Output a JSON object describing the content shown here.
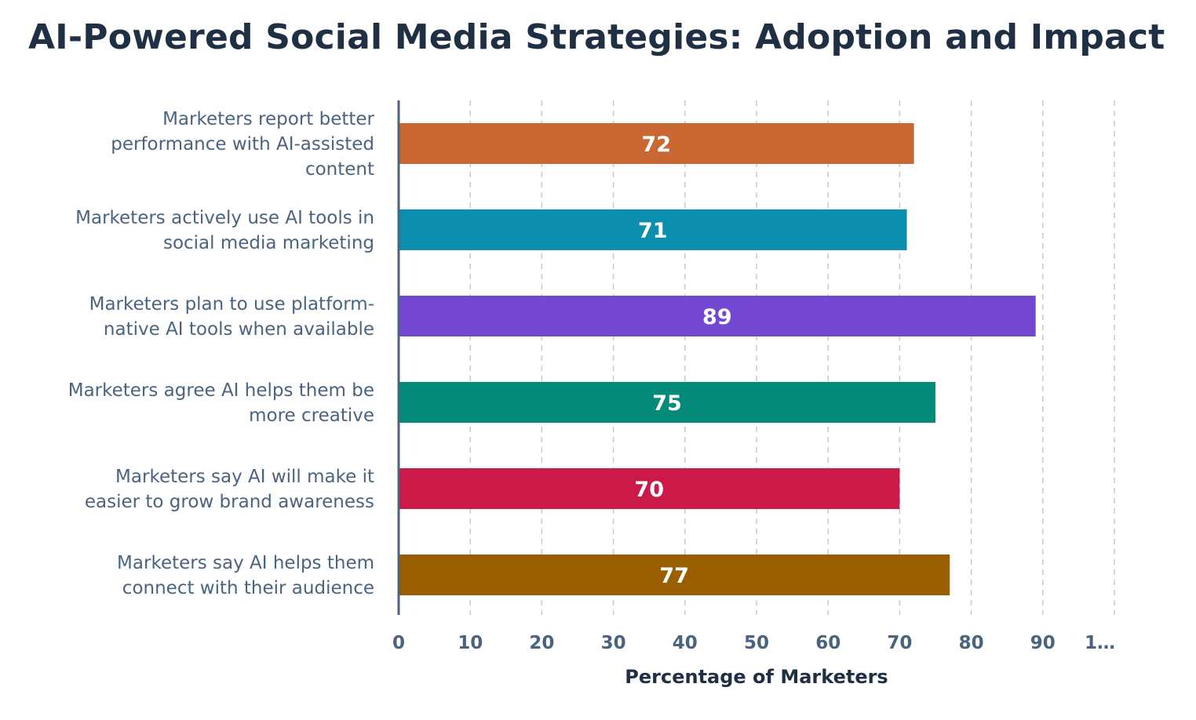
{
  "chart_data": {
    "type": "bar",
    "orientation": "horizontal",
    "title": "AI-Powered Social Media Strategies: Adoption and Impact",
    "xlabel": "Percentage of Marketers",
    "ylabel": "",
    "xlim": [
      0,
      100
    ],
    "grid": true,
    "x_ticks": [
      "0",
      "10",
      "20",
      "30",
      "40",
      "50",
      "60",
      "70",
      "80",
      "90",
      "1…"
    ],
    "categories": [
      [
        "Marketers report better",
        "performance with AI-assisted",
        "content"
      ],
      [
        "Marketers actively use AI tools in",
        "social media marketing"
      ],
      [
        "Marketers plan to use platform-",
        "native AI tools when available"
      ],
      [
        "Marketers agree AI helps them be",
        "more creative"
      ],
      [
        "Marketers say AI will make it",
        "easier to grow brand awareness"
      ],
      [
        "Marketers say AI helps them",
        "connect with their audience"
      ]
    ],
    "values": [
      72,
      71,
      89,
      75,
      70,
      77
    ],
    "colors": [
      "#c96833",
      "#0c8fae",
      "#7447d1",
      "#048a78",
      "#cc1a48",
      "#9a5d00"
    ]
  }
}
